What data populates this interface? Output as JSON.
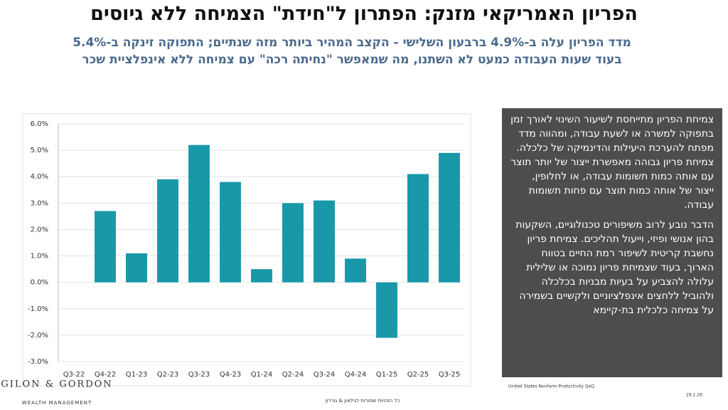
{
  "header": {
    "title": "הפריון האמריקאי מזנק: הפתרון ל\"חידת\" הצמיחה ללא גיוסים",
    "subtitle_lines": [
      "מדד הפריון עלה ב-4.9% ברבעון השלישי - הקצב המהיר ביותר מזה שנתיים; התפוקה זינקה ב-5.4%",
      "בעוד שעות העבודה כמעט לא השתנו, מה שמאפשר \"נחיתה רכה\" עם צמיחה ללא אינפלציית שכר"
    ]
  },
  "chart_data": {
    "type": "bar",
    "categories": [
      "Q3-22",
      "Q4-22",
      "Q1-23",
      "Q2-23",
      "Q3-23",
      "Q4-23",
      "Q1-24",
      "Q2-24",
      "Q3-24",
      "Q4-24",
      "Q1-25",
      "Q2-25",
      "Q3-25"
    ],
    "values": [
      null,
      2.7,
      1.1,
      3.9,
      5.2,
      3.8,
      0.5,
      3.0,
      3.1,
      0.9,
      -2.1,
      4.1,
      4.9
    ],
    "color": "#1898a8",
    "ylim": [
      -3,
      6
    ],
    "yticks": [
      {
        "value": -3,
        "label": "-3.0%"
      },
      {
        "value": -2,
        "label": "-2.0%"
      },
      {
        "value": -1,
        "label": "-1.0%"
      },
      {
        "value": 0,
        "label": "0.0%"
      },
      {
        "value": 1,
        "label": "1.0%"
      },
      {
        "value": 2,
        "label": "2.0%"
      },
      {
        "value": 3,
        "label": "3.0%"
      },
      {
        "value": 4,
        "label": "4.0%"
      },
      {
        "value": 5,
        "label": "5.0%"
      },
      {
        "value": 6,
        "label": "6.0%"
      }
    ],
    "grid": true
  },
  "textbox": {
    "paragraphs": [
      "צמיחת הפריון מתייחסת לשיעור השינוי לאורך זמן בתפוקה למשרה או לשעת עבודה, ומהווה מדד מפתח להערכת היעילות והדינמיקה של כלכלה. צמיחת פריון גבוהה מאפשרת ייצור של יותר תוצר עם אותה כמות תשומות עבודה, או לחלופין, ייצור של אותה כמות תוצר עם פחות תשומות עבודה.",
      "הדבר נובע לרוב משיפורים טכנולוגיים, השקעות בהון אנושי ופיזי, וייעול תהליכים. צמיחת פריון נחשבת קריטית לשיפור רמת החיים בטווח הארוך, בעוד שצמיחת פריון נמוכה או שלילית עלולה להצביע על בעיות מבניות בכלכלה ולהוביל ללחצים אינפלציוניים ולקשיים בשמירה על צמיחה כלכלית בת-קיימא"
    ]
  },
  "footer": {
    "source": "United States Nonfarm Productivity QoQ",
    "date": "29.1.26",
    "copyright": "כל הזכויות שמורות לגילאון & גורדון",
    "logo": "GILON & GORDON",
    "logo_sub": "WEALTH MANAGEMENT"
  }
}
